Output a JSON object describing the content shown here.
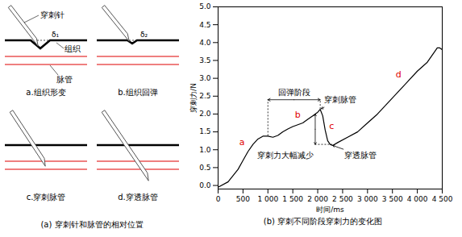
{
  "chart_data": {
    "type": "line",
    "title": "(b) 穿刺不同阶段穿刺力的变化图",
    "x_label": "时间/ms",
    "y_label": "穿刺力/N",
    "x": [
      0,
      200,
      400,
      500,
      600,
      700,
      800,
      900,
      1000,
      1100,
      1200,
      1300,
      1400,
      1500,
      1600,
      1700,
      1800,
      1900,
      2000,
      2050,
      2100,
      2150,
      2200,
      2250,
      2300,
      2400,
      2600,
      2800,
      3000,
      3200,
      3400,
      3600,
      3800,
      4000,
      4200,
      4350,
      4400,
      4450,
      4500
    ],
    "values": [
      -0.05,
      0.1,
      0.45,
      0.7,
      0.95,
      1.15,
      1.3,
      1.38,
      1.38,
      1.35,
      1.4,
      1.5,
      1.58,
      1.65,
      1.7,
      1.75,
      1.85,
      1.95,
      2.05,
      2.13,
      1.95,
      1.55,
      1.25,
      1.15,
      1.12,
      1.2,
      1.35,
      1.5,
      1.75,
      2.0,
      2.3,
      2.6,
      2.9,
      3.2,
      3.45,
      3.75,
      3.85,
      3.85,
      3.8
    ],
    "color": "#000000",
    "xlim": [
      0,
      4500
    ],
    "xticks": [
      0,
      500,
      {
        "value": 1000,
        "label": "1 000"
      },
      {
        "value": 1500,
        "label": "1 500"
      },
      {
        "value": 2000,
        "label": "2 000"
      },
      {
        "value": 2500,
        "label": "2 500"
      },
      {
        "value": 3000,
        "label": "3 000"
      },
      {
        "value": 3500,
        "label": "3 500"
      },
      {
        "value": 4000,
        "label": "4 000"
      },
      {
        "value": 4500,
        "label": "4 500"
      }
    ],
    "ylim": [
      -0.1,
      5.0
    ],
    "yticks": [
      {
        "value": 0,
        "label": "0.0"
      },
      0.5,
      {
        "value": 1,
        "label": "1.0"
      },
      1.5,
      {
        "value": 2,
        "label": "2.0"
      },
      2.5,
      {
        "value": 3,
        "label": "3.0"
      },
      3.5,
      {
        "value": 4,
        "label": "4.0"
      },
      4.5,
      {
        "value": 5,
        "label": "5.0"
      }
    ],
    "grid": false,
    "rebound": {
      "text": "回弹阶段",
      "x": [
        1000,
        2050
      ],
      "y": 2.4
    },
    "drop": {
      "text": "穿刺力大幅减少",
      "x": 1950,
      "y": [
        1.15,
        2.0
      ],
      "text_x": 1350
    },
    "annotations": [
      {
        "text": "穿刺脉管",
        "x": 2450,
        "y": 2.4,
        "arrow_to": [
          2070,
          2.15
        ]
      },
      {
        "text": "穿透脉管",
        "x": 2850,
        "y": 0.85,
        "arrow_to": [
          2300,
          1.12
        ]
      }
    ],
    "phase_labels": [
      {
        "text": "a",
        "x": 480,
        "y": 1.2,
        "color": "#e00000"
      },
      {
        "text": "b",
        "x": 1600,
        "y": 1.98,
        "color": "#e00000"
      },
      {
        "text": "c",
        "x": 2280,
        "y": 1.65,
        "color": "#e00000"
      },
      {
        "text": "d",
        "x": 3620,
        "y": 3.1,
        "color": "#e00000"
      }
    ]
  },
  "diagram": {
    "caption": "(a) 穿刺针和脉管的相对位置",
    "labels": {
      "needle": "穿刺针",
      "tissue": "组织",
      "vessel": "脉管"
    },
    "panels": [
      {
        "caption": "a.组织形变",
        "delta": "δ₁"
      },
      {
        "caption": "b.组织回弹",
        "delta": "δ₂"
      },
      {
        "caption": "c.穿刺脉管"
      },
      {
        "caption": "d.穿透脉管"
      }
    ]
  }
}
